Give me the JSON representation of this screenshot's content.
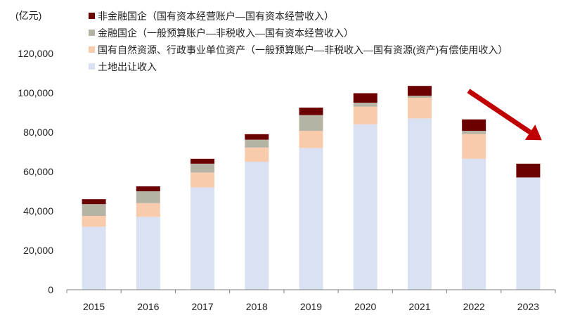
{
  "unit_label": "(亿元)",
  "chart_data": {
    "type": "bar",
    "stacked": true,
    "categories": [
      "2015",
      "2016",
      "2017",
      "2018",
      "2019",
      "2020",
      "2021",
      "2022",
      "2023"
    ],
    "ylim": [
      0,
      120000
    ],
    "yticks": [
      "0",
      "20,000",
      "40,000",
      "60,000",
      "80,000",
      "100,000",
      "120,000"
    ],
    "ytick_values": [
      0,
      20000,
      40000,
      60000,
      80000,
      100000,
      120000
    ],
    "legend_position": "top-left",
    "grid": false,
    "series": [
      {
        "name": "土地出让收入",
        "color": "#d9e1f2",
        "values": [
          32000,
          37000,
          52000,
          65000,
          72000,
          84000,
          87000,
          66500,
          57000
        ]
      },
      {
        "name": "国有自然资源、行政事业单位资产（一般预算账户—非税收入—国有资源(资产)有偿使用收入）",
        "color": "#f8cbad",
        "values": [
          5500,
          7000,
          7500,
          7200,
          8700,
          9000,
          10500,
          12600,
          0
        ]
      },
      {
        "name": "金融国企（一般预算账户—非税收入—国有资本经营收入）",
        "color": "#b5b3a3",
        "values": [
          6000,
          6000,
          4500,
          4000,
          8000,
          2000,
          1000,
          1600,
          0
        ]
      },
      {
        "name": "非金融国企（国有资本经营账户—国有资本经营收入）",
        "color": "#6b0000",
        "values": [
          2500,
          2500,
          2500,
          2800,
          3800,
          4800,
          5000,
          5800,
          7000
        ]
      }
    ],
    "legend_order": [
      3,
      2,
      1,
      0
    ],
    "trend_arrow": {
      "color": "#c00000",
      "from": {
        "x": "2021.9",
        "y": 101000
      },
      "to": {
        "x": "2023.25",
        "y": 76000
      }
    }
  }
}
